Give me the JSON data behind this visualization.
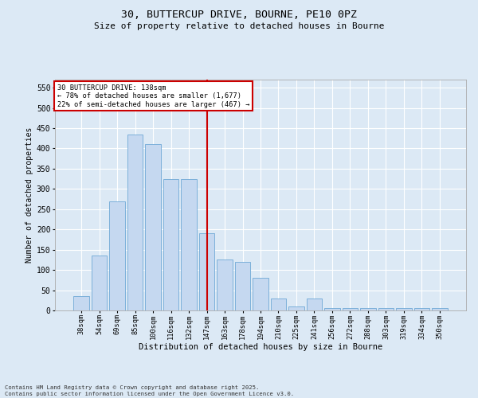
{
  "title_line1": "30, BUTTERCUP DRIVE, BOURNE, PE10 0PZ",
  "title_line2": "Size of property relative to detached houses in Bourne",
  "xlabel": "Distribution of detached houses by size in Bourne",
  "ylabel": "Number of detached properties",
  "categories": [
    "38sqm",
    "54sqm",
    "69sqm",
    "85sqm",
    "100sqm",
    "116sqm",
    "132sqm",
    "147sqm",
    "163sqm",
    "178sqm",
    "194sqm",
    "210sqm",
    "225sqm",
    "241sqm",
    "256sqm",
    "272sqm",
    "288sqm",
    "303sqm",
    "319sqm",
    "334sqm",
    "350sqm"
  ],
  "values": [
    35,
    135,
    270,
    435,
    410,
    325,
    325,
    190,
    125,
    120,
    80,
    30,
    10,
    30,
    5,
    5,
    5,
    5,
    5,
    5,
    5
  ],
  "bar_color": "#c5d8f0",
  "bar_edge_color": "#6fa8d6",
  "vline_x_index": 7,
  "vline_color": "#cc0000",
  "annotation_title": "30 BUTTERCUP DRIVE: 138sqm",
  "annotation_line1": "← 78% of detached houses are smaller (1,677)",
  "annotation_line2": "22% of semi-detached houses are larger (467) →",
  "annotation_box_color": "#ffffff",
  "annotation_box_edge_color": "#cc0000",
  "ylim": [
    0,
    570
  ],
  "yticks": [
    0,
    50,
    100,
    150,
    200,
    250,
    300,
    350,
    400,
    450,
    500,
    550
  ],
  "background_color": "#dce9f5",
  "footer_line1": "Contains HM Land Registry data © Crown copyright and database right 2025.",
  "footer_line2": "Contains public sector information licensed under the Open Government Licence v3.0."
}
